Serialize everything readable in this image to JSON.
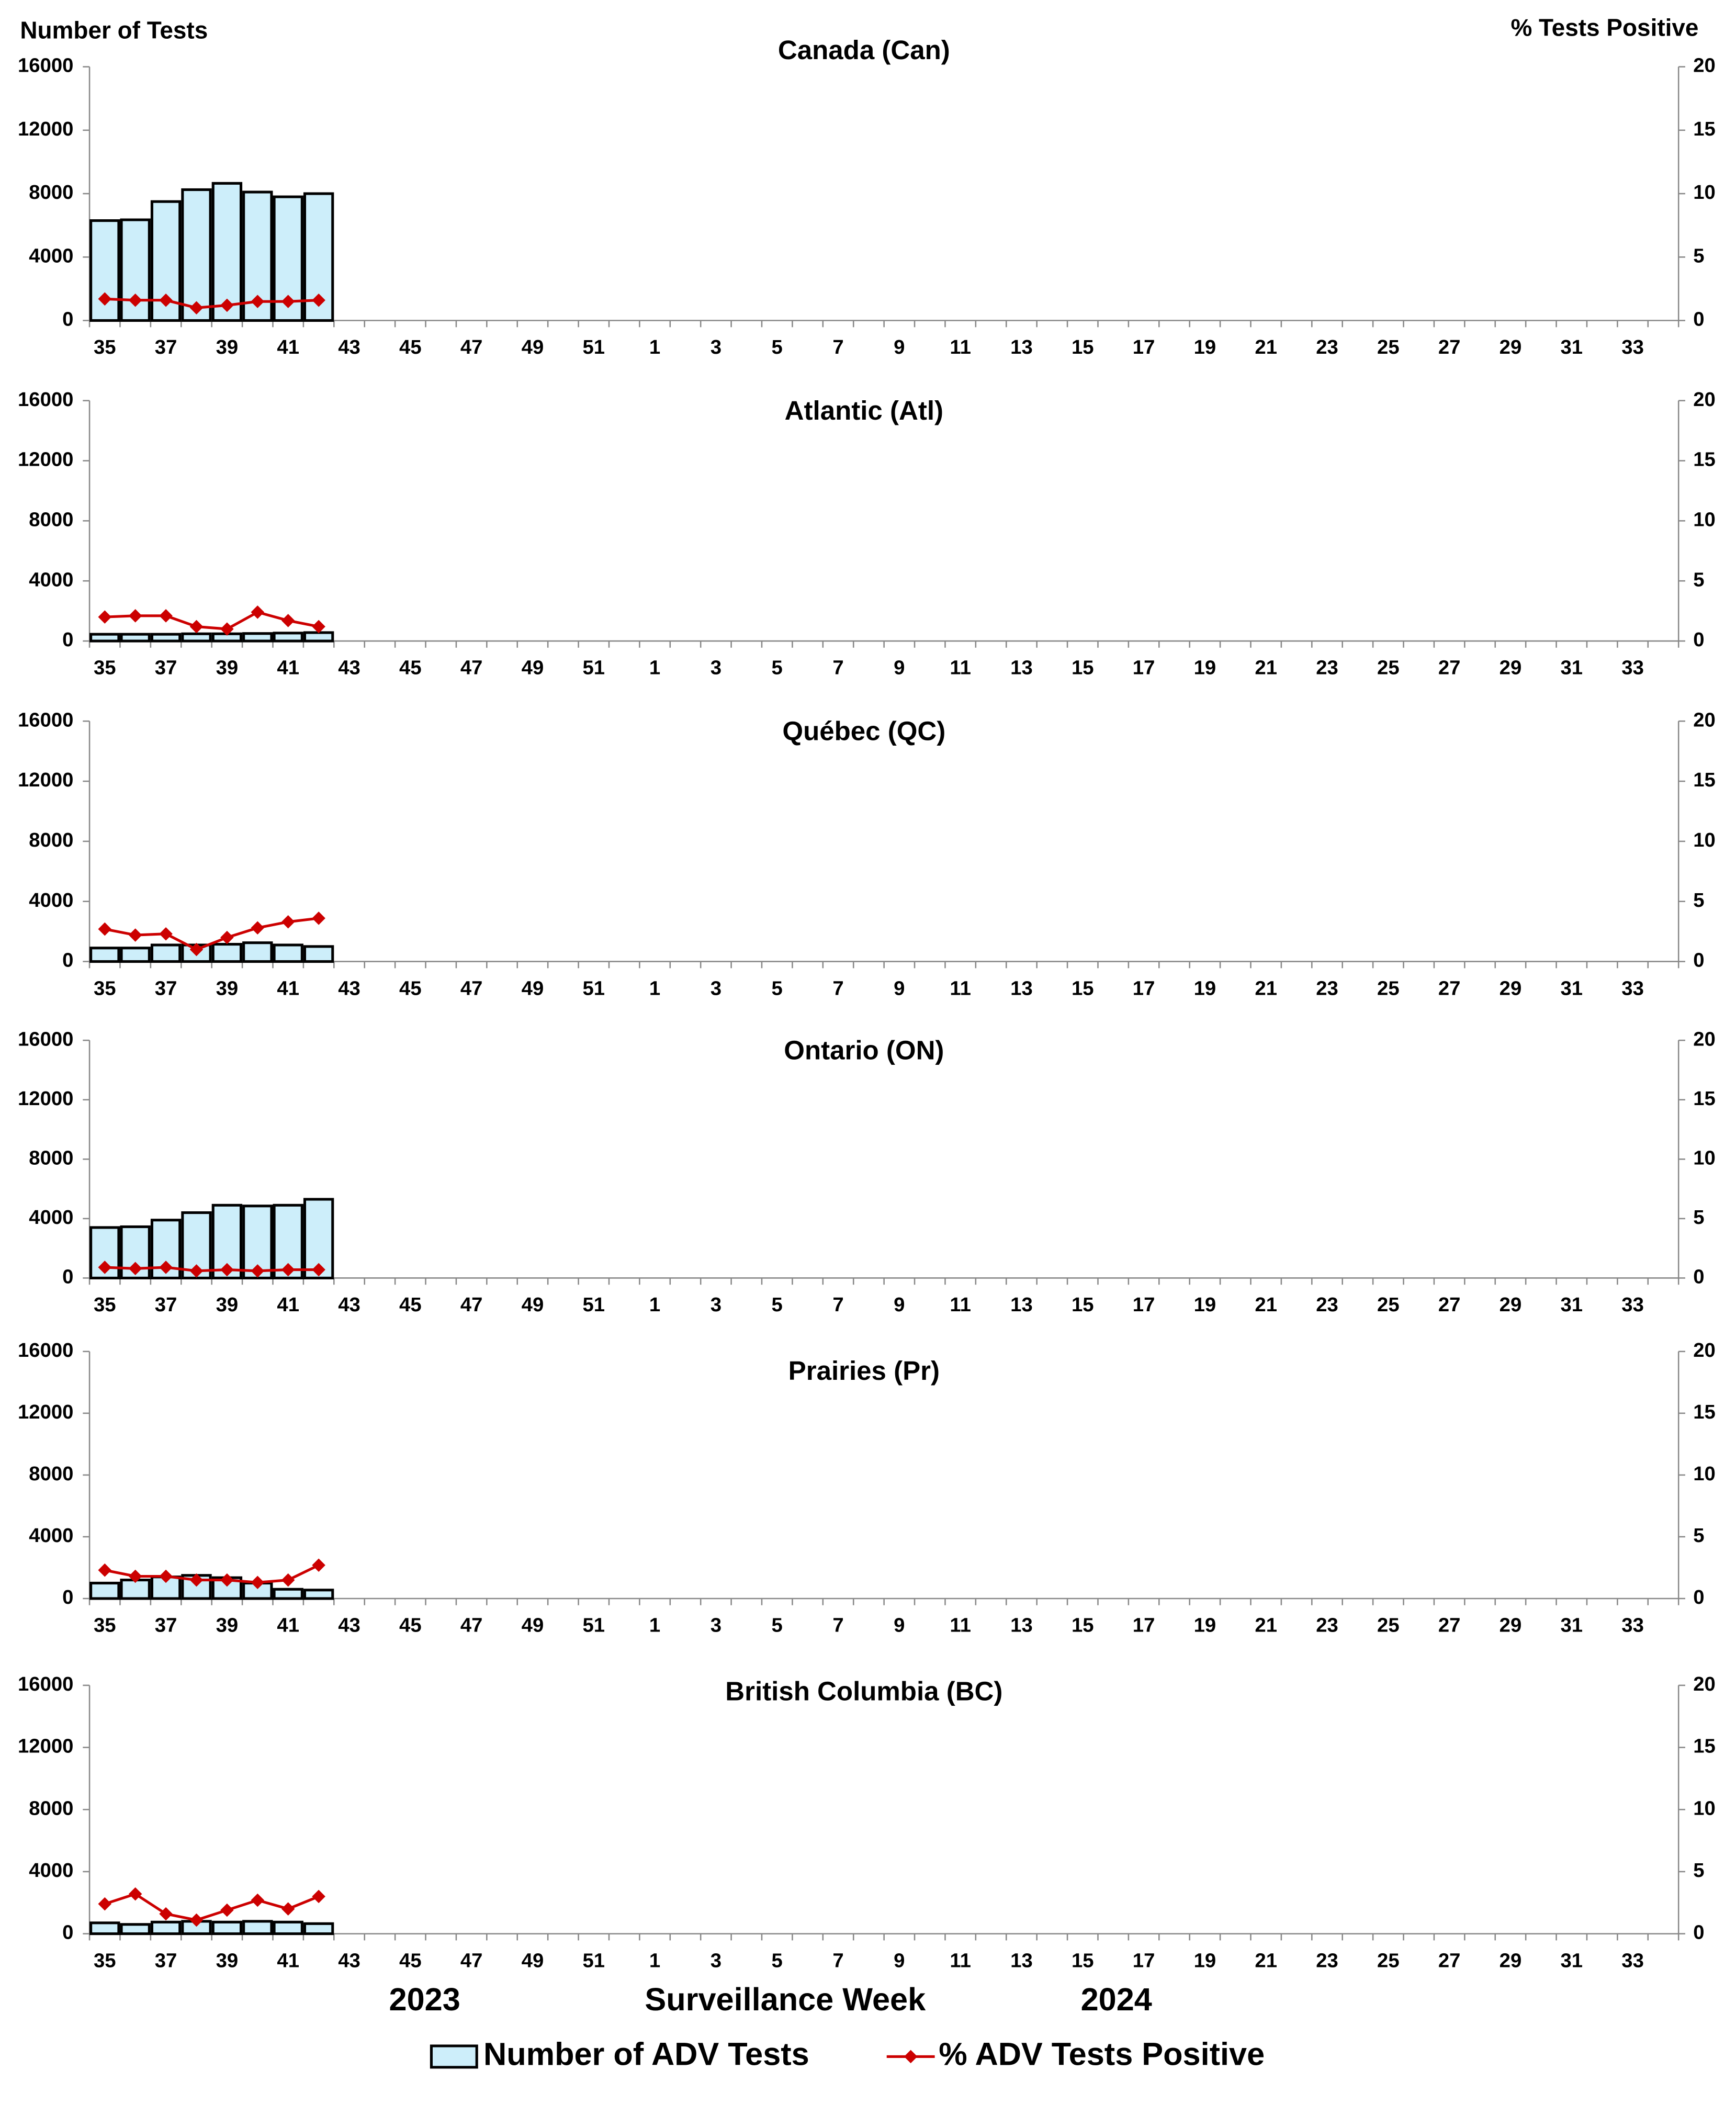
{
  "chart_data": [
    {
      "type": "combo",
      "title": "Canada (Can)",
      "ylabel": "Number of Tests",
      "y2label": "% Tests Positive",
      "categories": [
        35,
        null,
        37,
        null,
        39,
        null,
        41,
        null,
        43,
        null,
        45,
        null,
        47,
        null,
        49,
        null,
        51,
        null,
        1,
        null,
        3,
        null,
        5,
        null,
        7,
        null,
        9,
        null,
        11,
        null,
        13,
        null,
        15,
        null,
        17,
        null,
        19,
        null,
        21,
        null,
        23,
        null,
        25,
        null,
        27,
        null,
        29,
        null,
        31,
        null,
        33,
        null
      ],
      "series": [
        {
          "name": "Number of ADV Tests",
          "type": "bar",
          "color": "#cdeefa",
          "values": [
            6300,
            6350,
            7500,
            8250,
            8650,
            8100,
            7800,
            8000,
            null,
            null,
            null,
            null,
            null,
            null,
            null,
            null,
            null,
            null,
            null,
            null,
            null,
            null,
            null,
            null,
            null,
            null,
            null,
            null,
            null,
            null,
            null,
            null,
            null,
            null,
            null,
            null,
            null,
            null,
            null,
            null,
            null,
            null,
            null,
            null,
            null,
            null,
            null,
            null,
            null,
            null,
            null,
            null
          ]
        },
        {
          "name": "% ADV Tests Positive",
          "type": "line",
          "axis": "y2",
          "color": "#cc0000",
          "values": [
            1.7,
            1.6,
            1.6,
            1.0,
            1.2,
            1.5,
            1.5,
            1.6,
            null,
            null,
            null,
            null,
            null,
            null,
            null,
            null,
            null,
            null,
            null,
            null,
            null,
            null,
            null,
            null,
            null,
            null,
            null,
            null,
            null,
            null,
            null,
            null,
            null,
            null,
            null,
            null,
            null,
            null,
            null,
            null,
            null,
            null,
            null,
            null,
            null,
            null,
            null,
            null,
            null,
            null,
            null,
            null
          ]
        }
      ],
      "ylim": [
        0,
        16000
      ],
      "yticks": [
        0,
        4000,
        8000,
        12000,
        16000
      ],
      "y2lim": [
        0,
        20
      ],
      "y2ticks": [
        0,
        5,
        10,
        15,
        20
      ]
    },
    {
      "type": "combo",
      "title": "Atlantic (Atl)",
      "categories": [
        35,
        null,
        37,
        null,
        39,
        null,
        41,
        null,
        43,
        null,
        45,
        null,
        47,
        null,
        49,
        null,
        51,
        null,
        1,
        null,
        3,
        null,
        5,
        null,
        7,
        null,
        9,
        null,
        11,
        null,
        13,
        null,
        15,
        null,
        17,
        null,
        19,
        null,
        21,
        null,
        23,
        null,
        25,
        null,
        27,
        null,
        29,
        null,
        31,
        null,
        33,
        null
      ],
      "series": [
        {
          "name": "Number of ADV Tests",
          "type": "bar",
          "color": "#cdeefa",
          "values": [
            450,
            450,
            450,
            480,
            480,
            500,
            530,
            560,
            null,
            null,
            null,
            null,
            null,
            null,
            null,
            null,
            null,
            null,
            null,
            null,
            null,
            null,
            null,
            null,
            null,
            null,
            null,
            null,
            null,
            null,
            null,
            null,
            null,
            null,
            null,
            null,
            null,
            null,
            null,
            null,
            null,
            null,
            null,
            null,
            null,
            null,
            null,
            null,
            null,
            null,
            null,
            null
          ]
        },
        {
          "name": "% ADV Tests Positive",
          "type": "line",
          "axis": "y2",
          "color": "#cc0000",
          "values": [
            2.0,
            2.1,
            2.1,
            1.2,
            1.0,
            2.4,
            1.7,
            1.2,
            null,
            null,
            null,
            null,
            null,
            null,
            null,
            null,
            null,
            null,
            null,
            null,
            null,
            null,
            null,
            null,
            null,
            null,
            null,
            null,
            null,
            null,
            null,
            null,
            null,
            null,
            null,
            null,
            null,
            null,
            null,
            null,
            null,
            null,
            null,
            null,
            null,
            null,
            null,
            null,
            null,
            null,
            null,
            null
          ]
        }
      ],
      "ylim": [
        0,
        16000
      ],
      "yticks": [
        0,
        4000,
        8000,
        12000,
        16000
      ],
      "y2lim": [
        0,
        20
      ],
      "y2ticks": [
        0,
        5,
        10,
        15,
        20
      ]
    },
    {
      "type": "combo",
      "title": "Québec (QC)",
      "categories": [
        35,
        null,
        37,
        null,
        39,
        null,
        41,
        null,
        43,
        null,
        45,
        null,
        47,
        null,
        49,
        null,
        51,
        null,
        1,
        null,
        3,
        null,
        5,
        null,
        7,
        null,
        9,
        null,
        11,
        null,
        13,
        null,
        15,
        null,
        17,
        null,
        19,
        null,
        21,
        null,
        23,
        null,
        25,
        null,
        27,
        null,
        29,
        null,
        31,
        null,
        33,
        null
      ],
      "series": [
        {
          "name": "Number of ADV Tests",
          "type": "bar",
          "color": "#cdeefa",
          "values": [
            900,
            900,
            1100,
            1100,
            1150,
            1250,
            1100,
            1000,
            null,
            null,
            null,
            null,
            null,
            null,
            null,
            null,
            null,
            null,
            null,
            null,
            null,
            null,
            null,
            null,
            null,
            null,
            null,
            null,
            null,
            null,
            null,
            null,
            null,
            null,
            null,
            null,
            null,
            null,
            null,
            null,
            null,
            null,
            null,
            null,
            null,
            null,
            null,
            null,
            null,
            null,
            null,
            null
          ]
        },
        {
          "name": "% ADV Tests Positive",
          "type": "line",
          "axis": "y2",
          "color": "#cc0000",
          "values": [
            2.7,
            2.2,
            2.3,
            1.0,
            2.0,
            2.8,
            3.3,
            3.6,
            null,
            null,
            null,
            null,
            null,
            null,
            null,
            null,
            null,
            null,
            null,
            null,
            null,
            null,
            null,
            null,
            null,
            null,
            null,
            null,
            null,
            null,
            null,
            null,
            null,
            null,
            null,
            null,
            null,
            null,
            null,
            null,
            null,
            null,
            null,
            null,
            null,
            null,
            null,
            null,
            null,
            null,
            null,
            null
          ]
        }
      ],
      "ylim": [
        0,
        16000
      ],
      "yticks": [
        0,
        4000,
        8000,
        12000,
        16000
      ],
      "y2lim": [
        0,
        20
      ],
      "y2ticks": [
        0,
        5,
        10,
        15,
        20
      ]
    },
    {
      "type": "combo",
      "title": "Ontario (ON)",
      "categories": [
        35,
        null,
        37,
        null,
        39,
        null,
        41,
        null,
        43,
        null,
        45,
        null,
        47,
        null,
        49,
        null,
        51,
        null,
        1,
        null,
        3,
        null,
        5,
        null,
        7,
        null,
        9,
        null,
        11,
        null,
        13,
        null,
        15,
        null,
        17,
        null,
        19,
        null,
        21,
        null,
        23,
        null,
        25,
        null,
        27,
        null,
        29,
        null,
        31,
        null,
        33,
        null
      ],
      "series": [
        {
          "name": "Number of ADV Tests",
          "type": "bar",
          "color": "#cdeefa",
          "values": [
            3400,
            3450,
            3900,
            4400,
            4900,
            4850,
            4900,
            5300,
            null,
            null,
            null,
            null,
            null,
            null,
            null,
            null,
            null,
            null,
            null,
            null,
            null,
            null,
            null,
            null,
            null,
            null,
            null,
            null,
            null,
            null,
            null,
            null,
            null,
            null,
            null,
            null,
            null,
            null,
            null,
            null,
            null,
            null,
            null,
            null,
            null,
            null,
            null,
            null,
            null,
            null,
            null,
            null
          ]
        },
        {
          "name": "% ADV Tests Positive",
          "type": "line",
          "axis": "y2",
          "color": "#cc0000",
          "values": [
            0.9,
            0.8,
            0.9,
            0.6,
            0.7,
            0.6,
            0.7,
            0.7,
            null,
            null,
            null,
            null,
            null,
            null,
            null,
            null,
            null,
            null,
            null,
            null,
            null,
            null,
            null,
            null,
            null,
            null,
            null,
            null,
            null,
            null,
            null,
            null,
            null,
            null,
            null,
            null,
            null,
            null,
            null,
            null,
            null,
            null,
            null,
            null,
            null,
            null,
            null,
            null,
            null,
            null,
            null,
            null
          ]
        }
      ],
      "ylim": [
        0,
        16000
      ],
      "yticks": [
        0,
        4000,
        8000,
        12000,
        16000
      ],
      "y2lim": [
        0,
        20
      ],
      "y2ticks": [
        0,
        5,
        10,
        15,
        20
      ]
    },
    {
      "type": "combo",
      "title": "Prairies (Pr)",
      "categories": [
        35,
        null,
        37,
        null,
        39,
        null,
        41,
        null,
        43,
        null,
        45,
        null,
        47,
        null,
        49,
        null,
        51,
        null,
        1,
        null,
        3,
        null,
        5,
        null,
        7,
        null,
        9,
        null,
        11,
        null,
        13,
        null,
        15,
        null,
        17,
        null,
        19,
        null,
        21,
        null,
        23,
        null,
        25,
        null,
        27,
        null,
        29,
        null,
        31,
        null,
        33,
        null
      ],
      "series": [
        {
          "name": "Number of ADV Tests",
          "type": "bar",
          "color": "#cdeefa",
          "values": [
            1000,
            1200,
            1400,
            1500,
            1350,
            1000,
            600,
            550,
            null,
            null,
            null,
            null,
            null,
            null,
            null,
            null,
            null,
            null,
            null,
            null,
            null,
            null,
            null,
            null,
            null,
            null,
            null,
            null,
            null,
            null,
            null,
            null,
            null,
            null,
            null,
            null,
            null,
            null,
            null,
            null,
            null,
            null,
            null,
            null,
            null,
            null,
            null,
            null,
            null,
            null,
            null,
            null
          ]
        },
        {
          "name": "% ADV Tests Positive",
          "type": "line",
          "axis": "y2",
          "color": "#cc0000",
          "values": [
            2.3,
            1.8,
            1.8,
            1.5,
            1.5,
            1.3,
            1.5,
            2.7,
            null,
            null,
            null,
            null,
            null,
            null,
            null,
            null,
            null,
            null,
            null,
            null,
            null,
            null,
            null,
            null,
            null,
            null,
            null,
            null,
            null,
            null,
            null,
            null,
            null,
            null,
            null,
            null,
            null,
            null,
            null,
            null,
            null,
            null,
            null,
            null,
            null,
            null,
            null,
            null,
            null,
            null,
            null,
            null
          ]
        }
      ],
      "ylim": [
        0,
        16000
      ],
      "yticks": [
        0,
        4000,
        8000,
        12000,
        16000
      ],
      "y2lim": [
        0,
        20
      ],
      "y2ticks": [
        0,
        5,
        10,
        15,
        20
      ]
    },
    {
      "type": "combo",
      "title": "British Columbia (BC)",
      "x_label": "Surveillance Week",
      "year_labels": [
        "2023",
        "2024"
      ],
      "categories": [
        35,
        null,
        37,
        null,
        39,
        null,
        41,
        null,
        43,
        null,
        45,
        null,
        47,
        null,
        49,
        null,
        51,
        null,
        1,
        null,
        3,
        null,
        5,
        null,
        7,
        null,
        9,
        null,
        11,
        null,
        13,
        null,
        15,
        null,
        17,
        null,
        19,
        null,
        21,
        null,
        23,
        null,
        25,
        null,
        27,
        null,
        29,
        null,
        31,
        null,
        33,
        null
      ],
      "series": [
        {
          "name": "Number of ADV Tests",
          "type": "bar",
          "color": "#cdeefa",
          "values": [
            700,
            600,
            750,
            800,
            750,
            800,
            750,
            650,
            null,
            null,
            null,
            null,
            null,
            null,
            null,
            null,
            null,
            null,
            null,
            null,
            null,
            null,
            null,
            null,
            null,
            null,
            null,
            null,
            null,
            null,
            null,
            null,
            null,
            null,
            null,
            null,
            null,
            null,
            null,
            null,
            null,
            null,
            null,
            null,
            null,
            null,
            null,
            null,
            null,
            null,
            null,
            null
          ]
        },
        {
          "name": "% ADV Tests Positive",
          "type": "line",
          "axis": "y2",
          "color": "#cc0000",
          "values": [
            2.4,
            3.2,
            1.6,
            1.1,
            1.9,
            2.7,
            2.0,
            3.0,
            null,
            null,
            null,
            null,
            null,
            null,
            null,
            null,
            null,
            null,
            null,
            null,
            null,
            null,
            null,
            null,
            null,
            null,
            null,
            null,
            null,
            null,
            null,
            null,
            null,
            null,
            null,
            null,
            null,
            null,
            null,
            null,
            null,
            null,
            null,
            null,
            null,
            null,
            null,
            null,
            null,
            null,
            null,
            null
          ]
        }
      ],
      "ylim": [
        0,
        16000
      ],
      "yticks": [
        0,
        4000,
        8000,
        12000,
        16000
      ],
      "y2lim": [
        0,
        20
      ],
      "y2ticks": [
        0,
        5,
        10,
        15,
        20
      ]
    }
  ]
}
